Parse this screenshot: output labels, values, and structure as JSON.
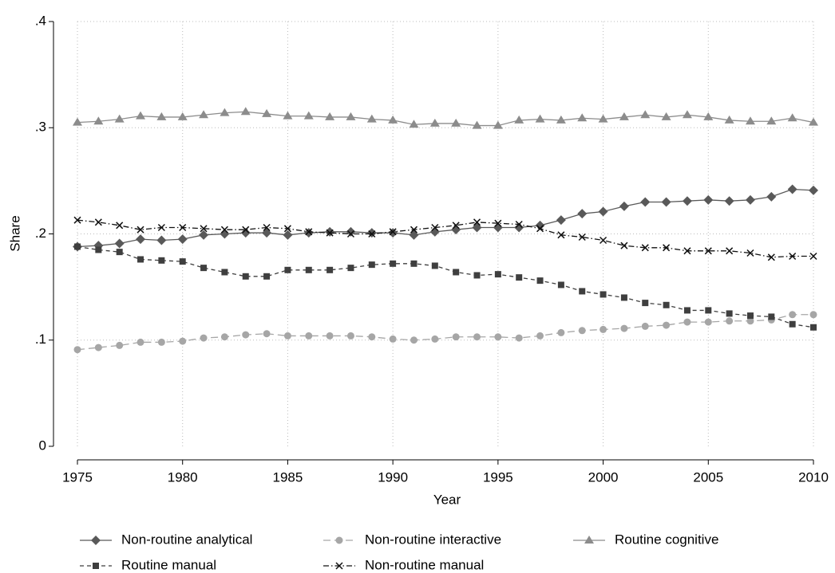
{
  "chart_data": {
    "type": "line",
    "xlabel": "Year",
    "ylabel": "Share",
    "x": [
      1975,
      1976,
      1977,
      1978,
      1979,
      1980,
      1981,
      1982,
      1983,
      1984,
      1985,
      1986,
      1987,
      1988,
      1989,
      1990,
      1991,
      1992,
      1993,
      1994,
      1995,
      1996,
      1997,
      1998,
      1999,
      2000,
      2001,
      2002,
      2003,
      2004,
      2005,
      2006,
      2007,
      2008,
      2009,
      2010
    ],
    "xlim": [
      1975,
      2010
    ],
    "xticks": [
      1975,
      1980,
      1985,
      1990,
      1995,
      2000,
      2005,
      2010
    ],
    "ylim": [
      0,
      0.4
    ],
    "yticks": [
      0,
      {
        "value": 0.1,
        "label": ".1"
      },
      {
        "value": 0.2,
        "label": ".2"
      },
      {
        "value": 0.3,
        "label": ".3"
      },
      {
        "value": 0.4,
        "label": ".4"
      }
    ],
    "grid": true,
    "legend": "bottom",
    "series": [
      {
        "name": "Non-routine analytical",
        "color": "#595959",
        "marker": "diamond",
        "dash": "solid",
        "values": [
          0.188,
          0.189,
          0.191,
          0.195,
          0.194,
          0.195,
          0.199,
          0.2,
          0.201,
          0.201,
          0.199,
          0.201,
          0.202,
          0.202,
          0.201,
          0.201,
          0.199,
          0.202,
          0.204,
          0.206,
          0.206,
          0.206,
          0.208,
          0.213,
          0.219,
          0.221,
          0.226,
          0.23,
          0.23,
          0.231,
          0.232,
          0.231,
          0.232,
          0.235,
          0.242,
          0.241
        ]
      },
      {
        "name": "Non-routine interactive",
        "color": "#a6a6a6",
        "marker": "circle",
        "dash": "long-dash",
        "values": [
          0.091,
          0.093,
          0.095,
          0.098,
          0.098,
          0.099,
          0.102,
          0.103,
          0.105,
          0.106,
          0.104,
          0.104,
          0.104,
          0.104,
          0.103,
          0.101,
          0.1,
          0.101,
          0.103,
          0.103,
          0.103,
          0.102,
          0.104,
          0.107,
          0.109,
          0.11,
          0.111,
          0.113,
          0.114,
          0.117,
          0.117,
          0.118,
          0.118,
          0.119,
          0.124,
          0.124
        ]
      },
      {
        "name": "Routine cognitive",
        "color": "#8c8c8c",
        "marker": "triangle",
        "dash": "solid",
        "values": [
          0.305,
          0.306,
          0.308,
          0.311,
          0.31,
          0.31,
          0.312,
          0.314,
          0.315,
          0.313,
          0.311,
          0.311,
          0.31,
          0.31,
          0.308,
          0.307,
          0.303,
          0.304,
          0.304,
          0.302,
          0.302,
          0.307,
          0.308,
          0.307,
          0.309,
          0.308,
          0.31,
          0.312,
          0.31,
          0.312,
          0.31,
          0.307,
          0.306,
          0.306,
          0.309,
          0.305
        ]
      },
      {
        "name": "Routine manual",
        "color": "#3f3f3f",
        "marker": "square",
        "dash": "dash",
        "values": [
          0.188,
          0.185,
          0.183,
          0.176,
          0.175,
          0.174,
          0.168,
          0.164,
          0.16,
          0.16,
          0.166,
          0.166,
          0.166,
          0.168,
          0.171,
          0.172,
          0.172,
          0.17,
          0.164,
          0.161,
          0.162,
          0.159,
          0.156,
          0.152,
          0.146,
          0.143,
          0.14,
          0.135,
          0.133,
          0.128,
          0.128,
          0.125,
          0.123,
          0.122,
          0.115,
          0.112
        ]
      },
      {
        "name": "Non-routine manual",
        "color": "#111111",
        "marker": "x",
        "dash": "dash-dot",
        "values": [
          0.213,
          0.211,
          0.208,
          0.204,
          0.206,
          0.206,
          0.205,
          0.204,
          0.204,
          0.206,
          0.205,
          0.202,
          0.201,
          0.2,
          0.2,
          0.202,
          0.204,
          0.206,
          0.208,
          0.211,
          0.21,
          0.209,
          0.205,
          0.199,
          0.197,
          0.194,
          0.189,
          0.187,
          0.187,
          0.184,
          0.184,
          0.184,
          0.182,
          0.178,
          0.179,
          0.179
        ]
      }
    ]
  }
}
